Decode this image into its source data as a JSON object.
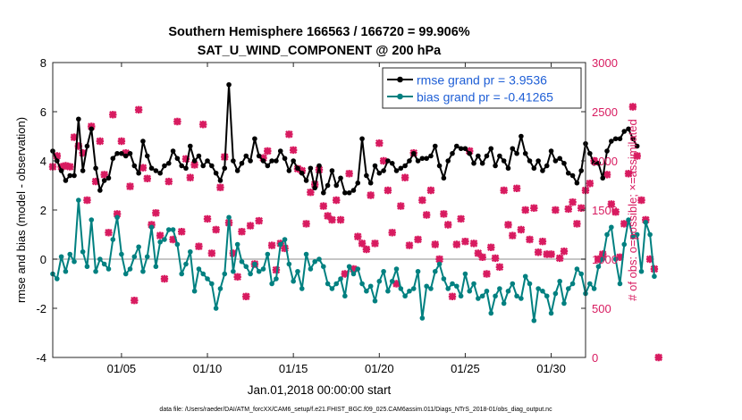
{
  "chart_data": {
    "type": "line",
    "title_line1": "Southern Hemisphere 166563 / 166720 = 99.906%",
    "title_line2": "SAT_U_WIND_COMPONENT @ 200 hPa",
    "xlabel": "Jan.01,2018 00:00:00 start",
    "ylabel_left": "rmse and bias (model - observation)",
    "ylabel_right": "# of obs: o=possible; ×=assimilated",
    "footer": "data file: /Users/raeder/DAI/ATM_forcXX/CAM6_setup/f.e21.FHIST_BGC.f09_025.CAM6assim.011/Diags_NTrS_2018-01/obs_diag_output.nc",
    "x_ticks": [
      {
        "day": 5,
        "label": "01/05"
      },
      {
        "day": 10,
        "label": "01/10"
      },
      {
        "day": 15,
        "label": "01/15"
      },
      {
        "day": 20,
        "label": "01/20"
      },
      {
        "day": 25,
        "label": "01/25"
      },
      {
        "day": 30,
        "label": "01/30"
      }
    ],
    "xlim": [
      1.0,
      32.0
    ],
    "y_left_lim": [
      -4,
      8
    ],
    "y_left_ticks": [
      "-4",
      "-2",
      "0",
      "2",
      "4",
      "6",
      "8"
    ],
    "y_right_lim": [
      0,
      3000
    ],
    "y_right_ticks": [
      "0",
      "500",
      "1000",
      "1500",
      "2000",
      "2500",
      "3000"
    ],
    "x_start_day": 1.0,
    "x_step_day": 0.25,
    "legend": [
      {
        "label": "rmse grand pr = 3.9536",
        "color": "#000000"
      },
      {
        "label": "bias grand pr = -0.41265",
        "color": "#008080"
      }
    ],
    "colors": {
      "rmse": "#000000",
      "bias": "#008080",
      "obs": "#d81b60",
      "zero_line": "#b3b3b3",
      "legend_text": "#1f5fd6"
    },
    "series": [
      {
        "name": "rmse",
        "values": [
          4.4,
          4.0,
          3.6,
          3.2,
          3.4,
          3.4,
          5.7,
          3.6,
          4.6,
          5.3,
          3.7,
          2.8,
          3.2,
          3.3,
          4.1,
          4.3,
          4.3,
          4.2,
          4.3,
          3.8,
          3.5,
          4.8,
          4.2,
          3.7,
          3.6,
          3.5,
          3.8,
          3.9,
          4.4,
          4.1,
          3.8,
          3.7,
          4.6,
          4.0,
          4.2,
          3.8,
          4.0,
          3.8,
          3.5,
          3.2,
          3.7,
          7.1,
          4.0,
          3.6,
          3.9,
          4.2,
          4.0,
          4.9,
          4.2,
          4.0,
          3.8,
          4.0,
          4.0,
          4.4,
          4.1,
          3.6,
          4.0,
          3.7,
          3.5,
          3.2,
          3.7,
          2.9,
          3.8,
          2.7,
          3.0,
          3.6,
          3.0,
          3.3,
          2.7,
          2.7,
          2.8,
          3.1,
          4.9,
          3.4,
          3.1,
          3.8,
          3.5,
          3.6,
          4.0,
          3.9,
          3.6,
          3.7,
          3.8,
          4.0,
          4.3,
          4.0,
          4.1,
          4.1,
          4.2,
          4.6,
          3.8,
          3.3,
          4.0,
          4.3,
          4.6,
          4.5,
          4.5,
          4.3,
          3.9,
          4.2,
          3.9,
          4.2,
          4.5,
          3.8,
          4.2,
          4.0,
          3.7,
          4.5,
          4.3,
          5.0,
          4.3,
          4.0,
          3.7,
          4.0,
          3.6,
          3.8,
          4.4,
          4.0,
          4.1,
          3.9,
          3.5,
          3.4,
          3.1,
          3.6,
          4.7,
          4.3,
          3.9,
          3.9,
          3.3,
          4.4,
          4.8,
          4.9,
          4.9,
          5.2,
          5.3,
          4.9,
          4.6
        ]
      },
      {
        "name": "bias",
        "values": [
          -0.6,
          -0.8,
          0.1,
          -0.5,
          0.2,
          -0.1,
          2.4,
          0.3,
          -0.3,
          1.6,
          -0.5,
          0.0,
          -0.2,
          -0.4,
          0.8,
          1.7,
          0.2,
          -0.6,
          -0.4,
          0.1,
          0.5,
          -0.5,
          0.1,
          1.3,
          -0.3,
          0.7,
          0.8,
          1.2,
          1.2,
          0.6,
          -0.6,
          -0.2,
          0.3,
          -1.3,
          -0.4,
          -0.6,
          -0.8,
          -1.0,
          -2.0,
          -1.2,
          -0.6,
          1.7,
          -0.5,
          0.6,
          -0.1,
          -0.3,
          -0.6,
          -0.2,
          -0.5,
          -0.4,
          0.2,
          -1.0,
          -0.8,
          0.6,
          0.8,
          -0.2,
          -0.9,
          -0.5,
          -1.2,
          0.2,
          -0.4,
          -0.1,
          0.0,
          -0.3,
          -1.0,
          -1.2,
          -1.0,
          -0.8,
          -1.5,
          -0.3,
          -0.6,
          -0.4,
          -1.0,
          -1.3,
          -1.1,
          -1.7,
          -0.9,
          -0.5,
          -1.3,
          -0.9,
          -0.4,
          -1.2,
          -1.5,
          -1.3,
          -1.2,
          -0.5,
          -2.4,
          -1.1,
          -1.2,
          -0.5,
          -0.2,
          -0.8,
          -1.2,
          -1.0,
          -1.1,
          -1.5,
          -0.6,
          -1.3,
          -1.0,
          -1.6,
          -1.5,
          -1.3,
          -2.2,
          -1.5,
          -1.2,
          -1.8,
          -1.3,
          -1.0,
          -1.5,
          -1.6,
          -0.7,
          -1.0,
          -2.5,
          -1.2,
          -1.3,
          -1.5,
          -2.2,
          -1.4,
          -0.9,
          -1.8,
          -1.2,
          -1.0,
          -0.4,
          -0.6,
          -1.4,
          -1.0,
          -1.2,
          -0.3,
          0.0,
          1.0,
          1.3,
          0.0,
          -1.0,
          0.6,
          1.6,
          0.9,
          1.0,
          -0.5,
          1.5,
          1.0,
          -0.7
        ]
      },
      {
        "name": "obs_count",
        "values": [
          1940,
          2050,
          1940,
          1950,
          1940,
          2240,
          2150,
          2080,
          1600,
          2350,
          1790,
          2200,
          1860,
          1270,
          2470,
          1460,
          2200,
          2080,
          1740,
          580,
          2520,
          1930,
          1820,
          1350,
          1470,
          1240,
          800,
          1790,
          1200,
          2400,
          1280,
          2020,
          1830,
          1960,
          1130,
          2370,
          1410,
          1060,
          1300,
          1730,
          2040,
          1370,
          1060,
          820,
          1280,
          620,
          1340,
          950,
          1390,
          2030,
          2100,
          1140,
          890,
          1160,
          1110,
          2270,
          2110,
          1920,
          1900,
          1360,
          1680,
          1760,
          1910,
          1540,
          1440,
          1400,
          1600,
          1400,
          850,
          1870,
          900,
          1230,
          1160,
          1100,
          1650,
          1160,
          2180,
          2000,
          1700,
          1270,
          750,
          1540,
          1830,
          1140,
          2080,
          1200,
          1600,
          1450,
          1700,
          1150,
          1000,
          1460,
          1350,
          620,
          1150,
          1410,
          1180,
          2100,
          1160,
          1060,
          1020,
          850,
          1120,
          1010,
          920,
          1700,
          1350,
          1240,
          1720,
          1300,
          1500,
          1200,
          1520,
          1070,
          1180,
          1050,
          1050,
          1500,
          1010,
          1080,
          1510,
          1580,
          1360,
          1520,
          1700,
          1770,
          2000,
          1000,
          1050,
          1860,
          1560,
          1480,
          1020,
          1360,
          1870,
          2550,
          2050,
          1600,
          1400,
          1000,
          900,
          0
        ]
      }
    ]
  }
}
